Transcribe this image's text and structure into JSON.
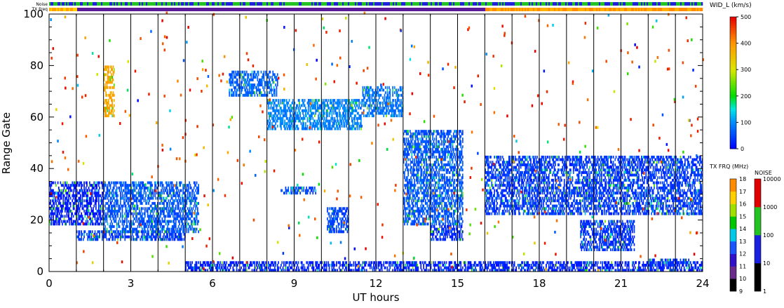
{
  "chart_data": {
    "type": "heatmap",
    "xlabel": "UT hours",
    "ylabel": "Range Gate",
    "xlim": [
      0,
      24
    ],
    "ylim": [
      0,
      100
    ],
    "x_ticks": [
      0,
      3,
      6,
      9,
      12,
      15,
      18,
      21,
      24
    ],
    "y_ticks": [
      0,
      20,
      40,
      60,
      80,
      100
    ],
    "hour_lines": [
      1,
      2,
      3,
      4,
      5,
      6,
      7,
      8,
      9,
      10,
      11,
      12,
      13,
      14,
      15,
      16,
      17,
      18,
      19,
      20,
      21,
      22,
      23
    ],
    "strip_labels": {
      "noise": "Noise",
      "txfreq": "TX Freq"
    },
    "width_bar": {
      "label": "WID_L (km/s)",
      "ticks": [
        0,
        100,
        200,
        300,
        400,
        500
      ],
      "range": [
        0,
        500
      ]
    },
    "freq_bar": {
      "label": "TX FRQ (MHz)",
      "ticks": [
        "9",
        "10",
        "11",
        "12",
        "13",
        "14",
        "15",
        "16",
        "17",
        "18"
      ]
    },
    "noise_bar": {
      "label": "NOISE",
      "ticks": [
        "1",
        "10",
        "100",
        "1000",
        "10000"
      ]
    },
    "echo_regions": [
      {
        "x": [
          0.0,
          2.0
        ],
        "y": [
          18,
          35
        ],
        "width": 20
      },
      {
        "x": [
          1.0,
          5.0
        ],
        "y": [
          12,
          16
        ],
        "width": 40
      },
      {
        "x": [
          2.0,
          5.5
        ],
        "y": [
          15,
          35
        ],
        "width": 60
      },
      {
        "x": [
          2.0,
          2.4
        ],
        "y": [
          60,
          80
        ],
        "width": 380
      },
      {
        "x": [
          6.6,
          8.4
        ],
        "y": [
          68,
          78
        ],
        "width": 70
      },
      {
        "x": [
          8.0,
          11.5
        ],
        "y": [
          55,
          67
        ],
        "width": 90
      },
      {
        "x": [
          11.5,
          13.0
        ],
        "y": [
          60,
          72
        ],
        "width": 80
      },
      {
        "x": [
          13.0,
          15.2
        ],
        "y": [
          18,
          55
        ],
        "width": 60
      },
      {
        "x": [
          14.0,
          15.2
        ],
        "y": [
          12,
          18
        ],
        "width": 30
      },
      {
        "x": [
          16.0,
          24.0
        ],
        "y": [
          22,
          45
        ],
        "width": 40
      },
      {
        "x": [
          19.5,
          21.5
        ],
        "y": [
          8,
          20
        ],
        "width": 35
      },
      {
        "x": [
          5.0,
          24.0
        ],
        "y": [
          0,
          4
        ],
        "width": 25
      },
      {
        "x": [
          22.0,
          23.5
        ],
        "y": [
          2,
          5
        ],
        "width": 30
      },
      {
        "x": [
          10.2,
          11.0
        ],
        "y": [
          15,
          25
        ],
        "width": 50
      },
      {
        "x": [
          8.5,
          9.8
        ],
        "y": [
          30,
          33
        ],
        "width": 50
      }
    ]
  }
}
